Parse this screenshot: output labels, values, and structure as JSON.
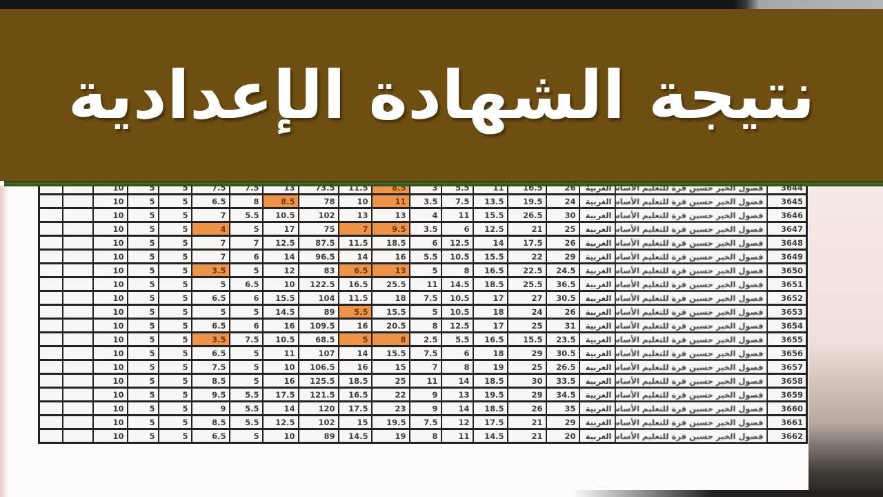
{
  "banner": {
    "title": "نتيجة الشهادة الإعدادية",
    "background_color": "#6e4e11",
    "title_color": "#ffffff"
  },
  "page": {
    "divider_color": "#4a6b24",
    "highlight_color": "#ec944a"
  },
  "table": {
    "region_label": "الغربية",
    "school_label": "فصول الخير حسين قرة للتعليم الأساسي اعدادي",
    "rows": [
      {
        "id": "3644",
        "values": [
          "10",
          "5",
          "5",
          "7.5",
          "7.5",
          "13",
          "73.5",
          "11.5",
          "8.5",
          "3",
          "5.5",
          "11",
          "16.5",
          "26"
        ],
        "highlights": [
          8
        ]
      },
      {
        "id": "3645",
        "values": [
          "10",
          "5",
          "5",
          "6.5",
          "8",
          "8.5",
          "78",
          "10",
          "11",
          "3.5",
          "7.5",
          "13.5",
          "19.5",
          "24"
        ],
        "highlights": [
          5,
          8
        ]
      },
      {
        "id": "3646",
        "values": [
          "10",
          "5",
          "5",
          "7",
          "5.5",
          "10.5",
          "102",
          "13",
          "13",
          "4",
          "11",
          "15.5",
          "26.5",
          "30"
        ],
        "highlights": []
      },
      {
        "id": "3647",
        "values": [
          "10",
          "5",
          "5",
          "4",
          "5",
          "17",
          "75",
          "7",
          "9.5",
          "3.5",
          "6",
          "12.5",
          "21",
          "25"
        ],
        "highlights": [
          3,
          7,
          8
        ]
      },
      {
        "id": "3648",
        "values": [
          "10",
          "5",
          "5",
          "7",
          "7",
          "12.5",
          "87.5",
          "11.5",
          "18.5",
          "6",
          "12.5",
          "14",
          "17.5",
          "26"
        ],
        "highlights": []
      },
      {
        "id": "3649",
        "values": [
          "10",
          "5",
          "5",
          "7",
          "6",
          "14",
          "96.5",
          "14",
          "16",
          "5.5",
          "10.5",
          "15.5",
          "22",
          "29"
        ],
        "highlights": []
      },
      {
        "id": "3650",
        "values": [
          "10",
          "5",
          "5",
          "3.5",
          "5",
          "12",
          "83",
          "6.5",
          "13",
          "5",
          "8",
          "16.5",
          "22.5",
          "24.5"
        ],
        "highlights": [
          3,
          7,
          8
        ]
      },
      {
        "id": "3651",
        "values": [
          "10",
          "5",
          "5",
          "5",
          "6.5",
          "10",
          "122.5",
          "16.5",
          "25.5",
          "11",
          "14.5",
          "18.5",
          "25.5",
          "36.5"
        ],
        "highlights": []
      },
      {
        "id": "3652",
        "values": [
          "10",
          "5",
          "5",
          "6.5",
          "6",
          "15.5",
          "104",
          "11.5",
          "18",
          "7.5",
          "10.5",
          "17",
          "27",
          "30.5"
        ],
        "highlights": []
      },
      {
        "id": "3653",
        "values": [
          "10",
          "5",
          "5",
          "5",
          "5",
          "14.5",
          "89",
          "5.5",
          "15.5",
          "5",
          "10.5",
          "18",
          "24",
          "26"
        ],
        "highlights": [
          7
        ]
      },
      {
        "id": "3654",
        "values": [
          "10",
          "5",
          "5",
          "6.5",
          "6",
          "16",
          "109.5",
          "16",
          "20.5",
          "8",
          "12.5",
          "17",
          "25",
          "31"
        ],
        "highlights": []
      },
      {
        "id": "3655",
        "values": [
          "10",
          "5",
          "5",
          "3.5",
          "7.5",
          "10.5",
          "68.5",
          "5",
          "8",
          "2.5",
          "5.5",
          "16.5",
          "15.5",
          "23.5"
        ],
        "highlights": [
          3,
          7,
          8
        ]
      },
      {
        "id": "3656",
        "values": [
          "10",
          "5",
          "5",
          "6.5",
          "5",
          "11",
          "107",
          "14",
          "15.5",
          "7.5",
          "6",
          "18",
          "29",
          "30.5"
        ],
        "highlights": []
      },
      {
        "id": "3657",
        "values": [
          "10",
          "5",
          "5",
          "7.5",
          "5",
          "10",
          "106.5",
          "16",
          "15",
          "7",
          "8",
          "19",
          "25",
          "26.5"
        ],
        "highlights": []
      },
      {
        "id": "3658",
        "values": [
          "10",
          "5",
          "5",
          "8.5",
          "5",
          "16",
          "125.5",
          "18.5",
          "25",
          "11",
          "14",
          "18.5",
          "30",
          "33.5"
        ],
        "highlights": []
      },
      {
        "id": "3659",
        "values": [
          "10",
          "5",
          "5",
          "9.5",
          "5.5",
          "17.5",
          "121.5",
          "16.5",
          "22",
          "9",
          "13",
          "19.5",
          "29",
          "34.5"
        ],
        "highlights": []
      },
      {
        "id": "3660",
        "values": [
          "10",
          "5",
          "5",
          "9",
          "5.5",
          "14",
          "120",
          "17.5",
          "23",
          "9",
          "14",
          "18.5",
          "26",
          "35"
        ],
        "highlights": []
      },
      {
        "id": "3661",
        "values": [
          "10",
          "5",
          "5",
          "8.5",
          "5.5",
          "12.5",
          "102",
          "15",
          "19.5",
          "7.5",
          "12",
          "17.5",
          "21",
          "29"
        ],
        "highlights": []
      },
      {
        "id": "3662",
        "values": [
          "10",
          "5",
          "5",
          "6.5",
          "5",
          "10",
          "89",
          "14.5",
          "19",
          "8",
          "11",
          "14.5",
          "21",
          "20"
        ],
        "highlights": []
      }
    ]
  }
}
